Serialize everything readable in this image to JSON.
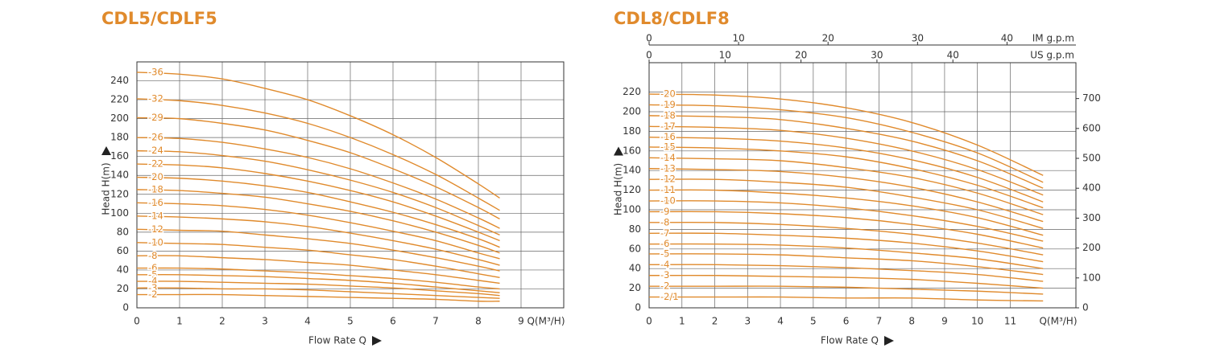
{
  "chart_data": [
    {
      "type": "line",
      "title": "CDL5/CDLF5",
      "x_label": "Flow Rate Q",
      "x_unit": "Q(M³/H)",
      "y_label": "Head H(m)",
      "color": "#e08a2c",
      "grid": true,
      "xlim": [
        0,
        10
      ],
      "xticks": [
        0,
        1,
        2,
        3,
        4,
        5,
        6,
        7,
        8,
        9
      ],
      "ylim": [
        0,
        260
      ],
      "yticks": [
        0,
        20,
        40,
        60,
        80,
        100,
        120,
        140,
        160,
        180,
        200,
        220,
        240
      ],
      "x": [
        0,
        1,
        2,
        3,
        4,
        5,
        6,
        7,
        8,
        8.5
      ],
      "series": [
        {
          "name": "-36",
          "values": [
            249,
            247,
            242,
            232,
            220,
            203,
            183,
            159,
            131,
            116
          ]
        },
        {
          "name": "-32",
          "values": [
            221,
            219,
            214,
            206,
            195,
            180,
            162,
            141,
            116,
            103
          ]
        },
        {
          "name": "-29",
          "values": [
            201,
            200,
            195,
            188,
            177,
            164,
            147,
            128,
            106,
            94
          ]
        },
        {
          "name": "-26",
          "values": [
            180,
            179,
            175,
            168,
            159,
            147,
            132,
            115,
            95,
            84
          ]
        },
        {
          "name": "-24",
          "values": [
            166,
            165,
            161,
            155,
            146,
            135,
            122,
            106,
            87,
            77
          ]
        },
        {
          "name": "-22",
          "values": [
            152,
            151,
            148,
            142,
            134,
            124,
            112,
            97,
            80,
            71
          ]
        },
        {
          "name": "-20",
          "values": [
            138,
            137,
            134,
            129,
            122,
            112,
            101,
            88,
            73,
            64
          ]
        },
        {
          "name": "-18",
          "values": [
            125,
            124,
            121,
            117,
            110,
            102,
            92,
            80,
            66,
            58
          ]
        },
        {
          "name": "-16",
          "values": [
            111,
            110,
            108,
            104,
            98,
            90,
            81,
            71,
            58,
            52
          ]
        },
        {
          "name": "-14",
          "values": [
            97,
            96,
            94,
            91,
            86,
            79,
            71,
            62,
            51,
            45
          ]
        },
        {
          "name": "-12",
          "values": [
            83,
            82,
            81,
            77,
            73,
            68,
            61,
            53,
            44,
            39
          ]
        },
        {
          "name": "-10",
          "values": [
            69,
            68,
            67,
            64,
            61,
            56,
            51,
            44,
            36,
            32
          ]
        },
        {
          "name": "-8",
          "values": [
            55,
            55,
            53,
            51,
            48,
            45,
            40,
            35,
            29,
            26
          ]
        },
        {
          "name": "-6",
          "values": [
            42,
            42,
            41,
            39,
            37,
            34,
            31,
            27,
            22,
            20
          ]
        },
        {
          "name": "-5",
          "values": [
            35,
            35,
            34,
            33,
            31,
            29,
            26,
            22,
            18,
            16
          ]
        },
        {
          "name": "-4",
          "values": [
            28,
            28,
            27,
            26,
            25,
            23,
            21,
            18,
            15,
            13
          ]
        },
        {
          "name": "-3",
          "values": [
            21,
            21,
            20,
            20,
            19,
            17,
            15,
            13,
            11,
            10
          ]
        },
        {
          "name": "-2",
          "values": [
            14,
            14,
            14,
            13,
            12,
            11,
            10,
            9,
            7,
            7
          ]
        }
      ]
    },
    {
      "type": "line",
      "title": "CDL8/CDLF8",
      "x_label": "Flow Rate Q",
      "x_unit": "Q(M³/H)",
      "y_label": "Head H(m)",
      "color": "#e08a2c",
      "grid": true,
      "xlim": [
        0,
        13
      ],
      "xticks": [
        0,
        1,
        2,
        3,
        4,
        5,
        6,
        7,
        8,
        9,
        10,
        11
      ],
      "ylim": [
        0,
        250
      ],
      "yticks": [
        0,
        20,
        40,
        60,
        80,
        100,
        120,
        140,
        160,
        180,
        200,
        220
      ],
      "y2lim": [
        0,
        820
      ],
      "y2ticks": [
        0,
        100,
        200,
        300,
        400,
        500,
        600,
        700
      ],
      "x2lim": [
        0,
        47.7
      ],
      "x2ticks": [
        0,
        10,
        20,
        30,
        40
      ],
      "x2_label": "IM g.p.m",
      "x3lim": [
        0,
        56.2
      ],
      "x3ticks": [
        0,
        10,
        20,
        30,
        40
      ],
      "x3_label": "US g.p.m",
      "x": [
        0,
        2,
        4,
        6,
        8,
        10,
        12
      ],
      "series": [
        {
          "name": "-20",
          "values": [
            218,
            217,
            213,
            204,
            189,
            166,
            135
          ]
        },
        {
          "name": "-19",
          "values": [
            207,
            206,
            202,
            194,
            179,
            158,
            128
          ]
        },
        {
          "name": "-18",
          "values": [
            196,
            195,
            192,
            183,
            170,
            150,
            122
          ]
        },
        {
          "name": "-17",
          "values": [
            185,
            184,
            181,
            173,
            160,
            141,
            115
          ]
        },
        {
          "name": "-16",
          "values": [
            174,
            173,
            170,
            163,
            151,
            133,
            108
          ]
        },
        {
          "name": "-15",
          "values": [
            164,
            163,
            160,
            154,
            142,
            125,
            102
          ]
        },
        {
          "name": "-14",
          "values": [
            153,
            152,
            150,
            143,
            133,
            117,
            95
          ]
        },
        {
          "name": "-13",
          "values": [
            142,
            141,
            139,
            133,
            123,
            108,
            88
          ]
        },
        {
          "name": "-12",
          "values": [
            131,
            131,
            128,
            123,
            113,
            100,
            81
          ]
        },
        {
          "name": "-11",
          "values": [
            120,
            120,
            117,
            112,
            104,
            92,
            74
          ]
        },
        {
          "name": "-10",
          "values": [
            109,
            109,
            107,
            102,
            94,
            83,
            68
          ]
        },
        {
          "name": "-9",
          "values": [
            98,
            98,
            96,
            92,
            85,
            75,
            61
          ]
        },
        {
          "name": "-8",
          "values": [
            87,
            87,
            85,
            81,
            75,
            66,
            54
          ]
        },
        {
          "name": "-7",
          "values": [
            76,
            76,
            74,
            71,
            66,
            58,
            47
          ]
        },
        {
          "name": "-6",
          "values": [
            65,
            65,
            64,
            61,
            56,
            50,
            40
          ]
        },
        {
          "name": "-5",
          "values": [
            55,
            55,
            54,
            51,
            48,
            42,
            34
          ]
        },
        {
          "name": "-4",
          "values": [
            44,
            44,
            43,
            41,
            38,
            34,
            27
          ]
        },
        {
          "name": "-3",
          "values": [
            33,
            33,
            32,
            31,
            29,
            25,
            20
          ]
        },
        {
          "name": "-2",
          "values": [
            22,
            22,
            22,
            21,
            19,
            17,
            14
          ]
        },
        {
          "name": "-2/1",
          "values": [
            11,
            11,
            11,
            10,
            10,
            8,
            7
          ]
        }
      ]
    }
  ]
}
